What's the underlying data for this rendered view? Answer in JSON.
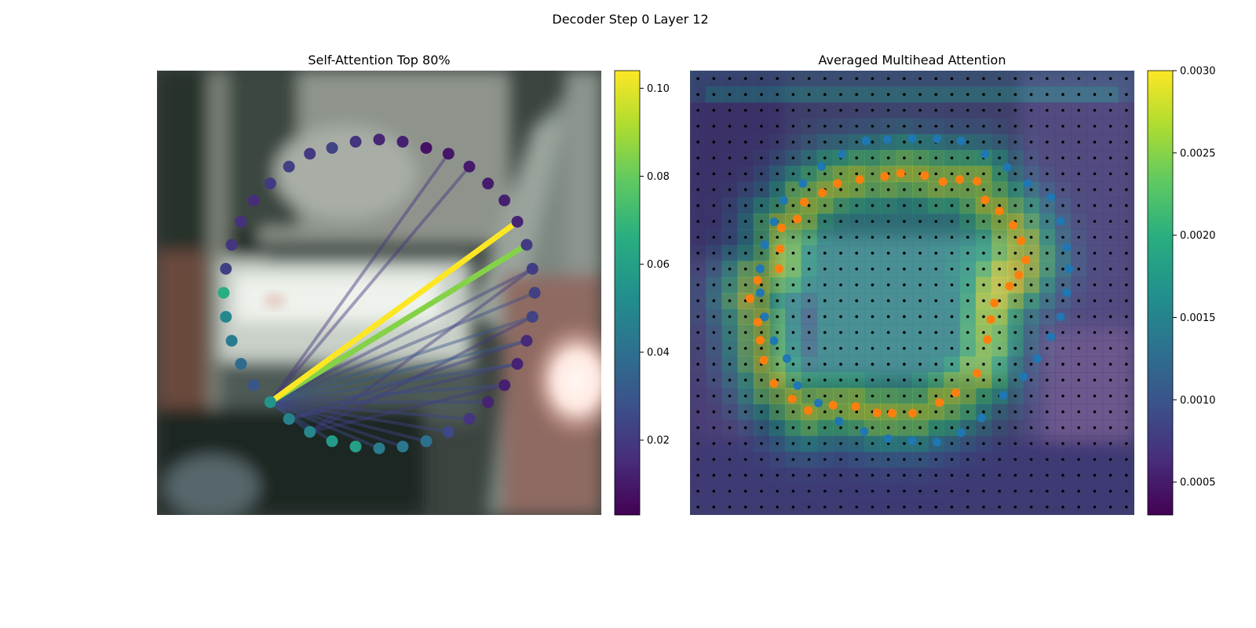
{
  "figure": {
    "suptitle": "Decoder Step 0 Layer 12"
  },
  "chart_data": [
    {
      "type": "scatter",
      "title": "Self-Attention Top 80%",
      "colormap": "viridis",
      "colorbar": {
        "min": 0.003,
        "max": 0.104,
        "ticks": [
          0.02,
          0.04,
          0.06,
          0.08,
          0.1
        ],
        "tick_labels": [
          "0.02",
          "0.04",
          "0.06",
          "0.08",
          "0.10"
        ]
      },
      "xlim": [
        0,
        1
      ],
      "ylim": [
        0,
        1
      ],
      "nodes": [
        {
          "x": 0.5,
          "y": 0.155,
          "value": 0.014
        },
        {
          "x": 0.553,
          "y": 0.16,
          "value": 0.012
        },
        {
          "x": 0.606,
          "y": 0.174,
          "value": 0.008
        },
        {
          "x": 0.656,
          "y": 0.187,
          "value": 0.009
        },
        {
          "x": 0.703,
          "y": 0.216,
          "value": 0.01
        },
        {
          "x": 0.745,
          "y": 0.254,
          "value": 0.011
        },
        {
          "x": 0.782,
          "y": 0.292,
          "value": 0.012
        },
        {
          "x": 0.811,
          "y": 0.34,
          "value": 0.013
        },
        {
          "x": 0.832,
          "y": 0.392,
          "value": 0.02
        },
        {
          "x": 0.845,
          "y": 0.446,
          "value": 0.021
        },
        {
          "x": 0.85,
          "y": 0.5,
          "value": 0.022
        },
        {
          "x": 0.845,
          "y": 0.554,
          "value": 0.023
        },
        {
          "x": 0.832,
          "y": 0.608,
          "value": 0.015
        },
        {
          "x": 0.811,
          "y": 0.66,
          "value": 0.013
        },
        {
          "x": 0.782,
          "y": 0.708,
          "value": 0.012
        },
        {
          "x": 0.745,
          "y": 0.746,
          "value": 0.013
        },
        {
          "x": 0.703,
          "y": 0.784,
          "value": 0.018
        },
        {
          "x": 0.656,
          "y": 0.813,
          "value": 0.025
        },
        {
          "x": 0.606,
          "y": 0.834,
          "value": 0.04
        },
        {
          "x": 0.553,
          "y": 0.846,
          "value": 0.043
        },
        {
          "x": 0.5,
          "y": 0.85,
          "value": 0.045
        },
        {
          "x": 0.447,
          "y": 0.846,
          "value": 0.06
        },
        {
          "x": 0.394,
          "y": 0.834,
          "value": 0.058
        },
        {
          "x": 0.344,
          "y": 0.813,
          "value": 0.05
        },
        {
          "x": 0.297,
          "y": 0.784,
          "value": 0.048
        },
        {
          "x": 0.255,
          "y": 0.746,
          "value": 0.055
        },
        {
          "x": 0.218,
          "y": 0.708,
          "value": 0.03
        },
        {
          "x": 0.189,
          "y": 0.66,
          "value": 0.038
        },
        {
          "x": 0.168,
          "y": 0.608,
          "value": 0.045
        },
        {
          "x": 0.155,
          "y": 0.554,
          "value": 0.05
        },
        {
          "x": 0.15,
          "y": 0.5,
          "value": 0.066
        },
        {
          "x": 0.155,
          "y": 0.446,
          "value": 0.022
        },
        {
          "x": 0.168,
          "y": 0.392,
          "value": 0.018
        },
        {
          "x": 0.189,
          "y": 0.34,
          "value": 0.017
        },
        {
          "x": 0.218,
          "y": 0.292,
          "value": 0.016
        },
        {
          "x": 0.255,
          "y": 0.254,
          "value": 0.02
        },
        {
          "x": 0.297,
          "y": 0.216,
          "value": 0.022
        },
        {
          "x": 0.344,
          "y": 0.187,
          "value": 0.02
        },
        {
          "x": 0.394,
          "y": 0.174,
          "value": 0.023
        },
        {
          "x": 0.447,
          "y": 0.16,
          "value": 0.018
        }
      ],
      "edges": [
        {
          "from": 25,
          "to": 7,
          "value": 0.104
        },
        {
          "from": 25,
          "to": 8,
          "value": 0.085
        },
        {
          "from": 25,
          "to": 11,
          "value": 0.03
        },
        {
          "from": 25,
          "to": 12,
          "value": 0.032
        },
        {
          "from": 25,
          "to": 13,
          "value": 0.028
        },
        {
          "from": 25,
          "to": 14,
          "value": 0.026
        },
        {
          "from": 25,
          "to": 10,
          "value": 0.026
        },
        {
          "from": 25,
          "to": 15,
          "value": 0.025
        },
        {
          "from": 25,
          "to": 16,
          "value": 0.025
        },
        {
          "from": 25,
          "to": 9,
          "value": 0.022
        },
        {
          "from": 25,
          "to": 17,
          "value": 0.024
        },
        {
          "from": 25,
          "to": 18,
          "value": 0.024
        },
        {
          "from": 25,
          "to": 19,
          "value": 0.024
        },
        {
          "from": 25,
          "to": 20,
          "value": 0.026
        },
        {
          "from": 25,
          "to": 22,
          "value": 0.026
        },
        {
          "from": 25,
          "to": 23,
          "value": 0.028
        },
        {
          "from": 24,
          "to": 13,
          "value": 0.022
        },
        {
          "from": 24,
          "to": 12,
          "value": 0.022
        },
        {
          "from": 23,
          "to": 11,
          "value": 0.02
        },
        {
          "from": 23,
          "to": 14,
          "value": 0.02
        },
        {
          "from": 23,
          "to": 9,
          "value": 0.02
        },
        {
          "from": 25,
          "to": 3,
          "value": 0.018
        },
        {
          "from": 25,
          "to": 4,
          "value": 0.018
        }
      ]
    },
    {
      "type": "heatmap",
      "title": "Averaged Multihead Attention",
      "colormap": "viridis",
      "colorbar": {
        "min": 0.0003,
        "max": 0.003,
        "ticks": [
          0.0005,
          0.001,
          0.0015,
          0.002,
          0.0025,
          0.003
        ],
        "tick_labels": [
          "0.0005",
          "0.0010",
          "0.0015",
          "0.0020",
          "0.0025",
          "0.0030"
        ]
      },
      "grid_size": 28,
      "overlay_series": [
        {
          "color": "#1f77b4",
          "points": [
            [
              0.5,
              0.153
            ],
            [
              0.556,
              0.153
            ],
            [
              0.61,
              0.158
            ],
            [
              0.664,
              0.188
            ],
            [
              0.714,
              0.218
            ],
            [
              0.76,
              0.254
            ],
            [
              0.812,
              0.285
            ],
            [
              0.834,
              0.339
            ],
            [
              0.848,
              0.398
            ],
            [
              0.853,
              0.446
            ],
            [
              0.848,
              0.5
            ],
            [
              0.834,
              0.554
            ],
            [
              0.812,
              0.599
            ],
            [
              0.781,
              0.648
            ],
            [
              0.751,
              0.689
            ],
            [
              0.705,
              0.731
            ],
            [
              0.656,
              0.782
            ],
            [
              0.61,
              0.815
            ],
            [
              0.556,
              0.836
            ],
            [
              0.5,
              0.833
            ],
            [
              0.446,
              0.828
            ],
            [
              0.392,
              0.812
            ],
            [
              0.335,
              0.789
            ],
            [
              0.289,
              0.748
            ],
            [
              0.242,
              0.709
            ],
            [
              0.218,
              0.648
            ],
            [
              0.189,
              0.608
            ],
            [
              0.168,
              0.554
            ],
            [
              0.158,
              0.5
            ],
            [
              0.158,
              0.446
            ],
            [
              0.168,
              0.392
            ],
            [
              0.189,
              0.34
            ],
            [
              0.211,
              0.292
            ],
            [
              0.254,
              0.254
            ],
            [
              0.296,
              0.216
            ],
            [
              0.342,
              0.188
            ],
            [
              0.396,
              0.158
            ],
            [
              0.444,
              0.155
            ]
          ]
        },
        {
          "color": "#ff7f0e",
          "points": [
            [
              0.438,
              0.238
            ],
            [
              0.474,
              0.231
            ],
            [
              0.528,
              0.236
            ],
            [
              0.569,
              0.25
            ],
            [
              0.607,
              0.245
            ],
            [
              0.646,
              0.249
            ],
            [
              0.664,
              0.291
            ],
            [
              0.696,
              0.316
            ],
            [
              0.727,
              0.348
            ],
            [
              0.745,
              0.383
            ],
            [
              0.756,
              0.426
            ],
            [
              0.74,
              0.46
            ],
            [
              0.719,
              0.485
            ],
            [
              0.685,
              0.523
            ],
            [
              0.677,
              0.56
            ],
            [
              0.669,
              0.605
            ],
            [
              0.646,
              0.681
            ],
            [
              0.598,
              0.725
            ],
            [
              0.561,
              0.747
            ],
            [
              0.501,
              0.771
            ],
            [
              0.455,
              0.771
            ],
            [
              0.421,
              0.77
            ],
            [
              0.373,
              0.756
            ],
            [
              0.322,
              0.753
            ],
            [
              0.266,
              0.765
            ],
            [
              0.23,
              0.739
            ],
            [
              0.189,
              0.704
            ],
            [
              0.166,
              0.652
            ],
            [
              0.158,
              0.607
            ],
            [
              0.153,
              0.566
            ],
            [
              0.135,
              0.513
            ],
            [
              0.152,
              0.472
            ],
            [
              0.2,
              0.446
            ],
            [
              0.203,
              0.401
            ],
            [
              0.206,
              0.354
            ],
            [
              0.241,
              0.334
            ],
            [
              0.257,
              0.296
            ],
            [
              0.298,
              0.275
            ],
            [
              0.332,
              0.254
            ],
            [
              0.382,
              0.245
            ]
          ]
        }
      ]
    }
  ]
}
